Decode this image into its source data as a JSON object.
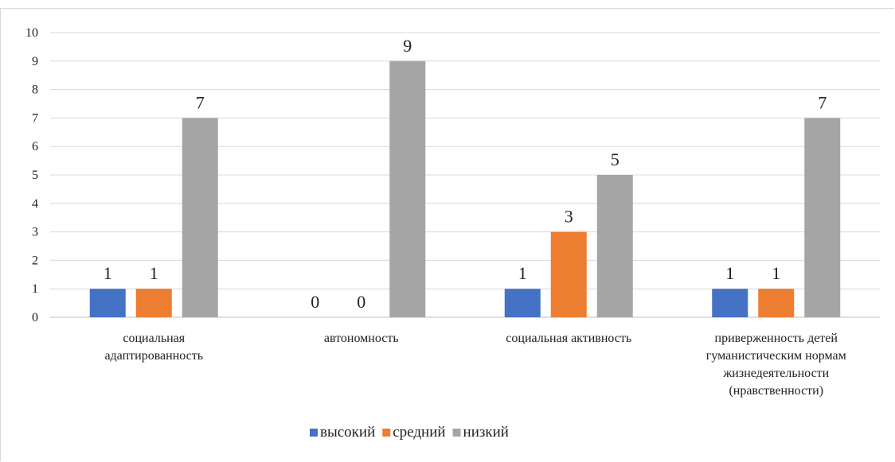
{
  "chart_data": {
    "type": "bar",
    "categories": [
      [
        "социальная",
        "адаптированность"
      ],
      [
        "автономность"
      ],
      [
        "социальная активность"
      ],
      [
        "приверженность детей",
        "гуманистическим нормам",
        "жизнедеятельности",
        "(нравственности)"
      ]
    ],
    "series": [
      {
        "name": "высокий",
        "color": "#4472c4",
        "values": [
          1,
          0,
          1,
          1
        ]
      },
      {
        "name": "средний",
        "color": "#ed7d31",
        "values": [
          1,
          0,
          3,
          1
        ]
      },
      {
        "name": "низкий",
        "color": "#a5a5a5",
        "values": [
          7,
          9,
          5,
          7
        ]
      }
    ],
    "ylim": [
      0,
      10
    ],
    "yticks": [
      "0",
      "1",
      "2",
      "3",
      "4",
      "5",
      "6",
      "7",
      "8",
      "9",
      "10"
    ],
    "grid": true,
    "legend": "bottom"
  }
}
